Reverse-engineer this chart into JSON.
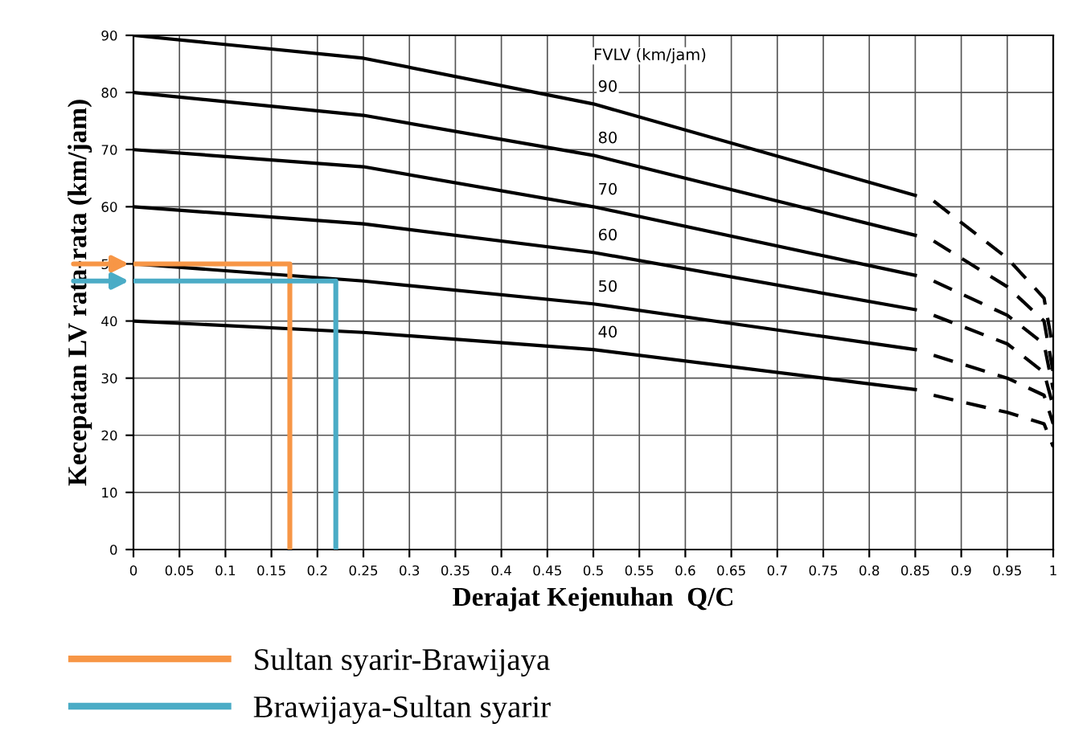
{
  "chart_data": {
    "type": "line",
    "xlabel": "Derajat Kejenuhan  Q/C",
    "ylabel": "Kecepatan LV rata-rata (km/jam)",
    "xlim": [
      0,
      1
    ],
    "ylim": [
      0,
      90
    ],
    "xticks": [
      0,
      0.05,
      0.1,
      0.15,
      0.2,
      0.25,
      0.3,
      0.35,
      0.4,
      0.45,
      0.5,
      0.55,
      0.6,
      0.65,
      0.7,
      0.75,
      0.8,
      0.85,
      0.9,
      0.95,
      1
    ],
    "yticks": [
      0,
      10,
      20,
      30,
      40,
      50,
      60,
      70,
      80,
      90
    ],
    "grid": true,
    "legend": "bottom",
    "marker": "none",
    "annotations": [
      "FVLV (km/jam)",
      "90",
      "80",
      "70",
      "60",
      "50",
      "40"
    ],
    "series": [
      {
        "color": "#000000",
        "line_style": "solid",
        "x": [
          0,
          0.25,
          0.5,
          0.85
        ],
        "values": [
          90,
          86,
          78,
          62
        ]
      },
      {
        "color": "#000000",
        "line_style": "solid",
        "x": [
          0,
          0.25,
          0.5,
          0.85
        ],
        "values": [
          80,
          76,
          69,
          55
        ]
      },
      {
        "color": "#000000",
        "line_style": "solid",
        "x": [
          0,
          0.25,
          0.5,
          0.85
        ],
        "values": [
          70,
          67,
          60,
          48
        ]
      },
      {
        "color": "#000000",
        "line_style": "solid",
        "x": [
          0,
          0.25,
          0.5,
          0.85
        ],
        "values": [
          60,
          57,
          52,
          42
        ]
      },
      {
        "color": "#000000",
        "line_style": "solid",
        "x": [
          0,
          0.25,
          0.5,
          0.85
        ],
        "values": [
          50,
          47,
          43,
          35
        ]
      },
      {
        "color": "#000000",
        "line_style": "solid",
        "x": [
          0,
          0.25,
          0.5,
          0.85
        ],
        "values": [
          40,
          38,
          35,
          28
        ]
      },
      {
        "color": "#000000",
        "line_style": "dashed",
        "x": [
          0.87,
          0.95,
          0.99,
          1.0
        ],
        "values": [
          61,
          51,
          44,
          35
        ]
      },
      {
        "color": "#000000",
        "line_style": "dashed",
        "x": [
          0.87,
          0.95,
          0.99,
          1.0
        ],
        "values": [
          54,
          46,
          40,
          31
        ]
      },
      {
        "color": "#000000",
        "line_style": "dashed",
        "x": [
          0.87,
          0.95,
          0.99,
          1.0
        ],
        "values": [
          47,
          41,
          36,
          28
        ]
      },
      {
        "color": "#000000",
        "line_style": "dashed",
        "x": [
          0.87,
          0.95,
          0.99,
          1.0
        ],
        "values": [
          41,
          36,
          31,
          25
        ]
      },
      {
        "color": "#000000",
        "line_style": "dashed",
        "x": [
          0.87,
          0.95,
          0.99,
          1.0
        ],
        "values": [
          34,
          30,
          27,
          22
        ]
      },
      {
        "color": "#000000",
        "line_style": "dashed",
        "x": [
          0.87,
          0.95,
          0.99,
          1.0
        ],
        "values": [
          27,
          24,
          22,
          18
        ]
      },
      {
        "name": "Sultan syarir-Brawijaya",
        "color": "#f79646",
        "line_style": "solid",
        "x": [
          0,
          0.17,
          0.17
        ],
        "values": [
          50,
          50,
          0
        ]
      },
      {
        "name": "Brawijaya-Sultan syarir",
        "color": "#4bacc6",
        "line_style": "solid",
        "x": [
          0,
          0.22,
          0.22
        ],
        "values": [
          47,
          47,
          0
        ]
      }
    ]
  }
}
